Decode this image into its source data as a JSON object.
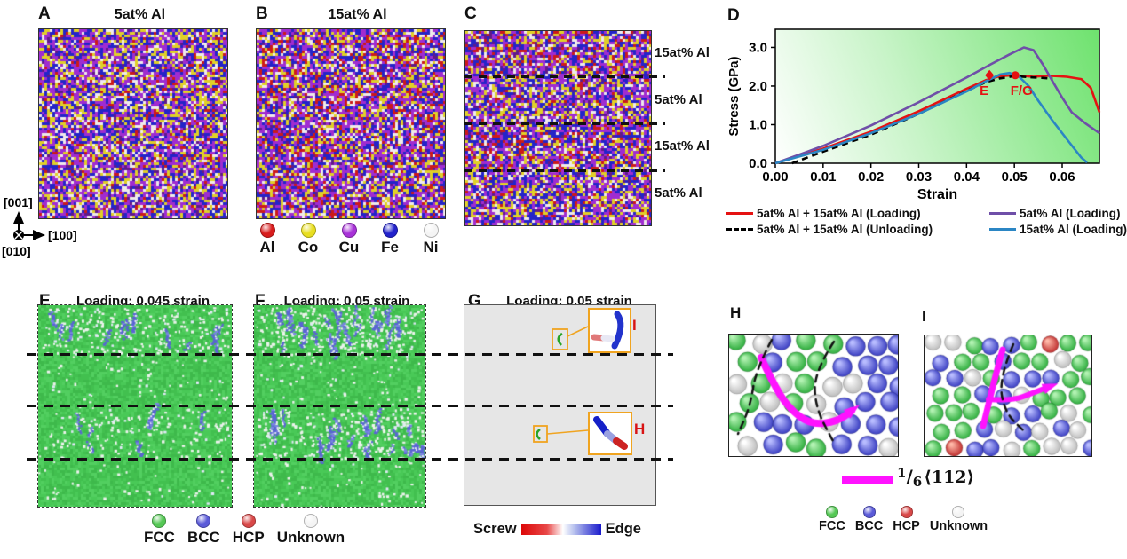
{
  "panel_a": {
    "label": "A",
    "title": "5at% Al"
  },
  "panel_b": {
    "label": "B",
    "title": "15at% Al"
  },
  "panel_c": {
    "label": "C",
    "layer_labels": [
      "15at% Al",
      "5at% Al",
      "15at% Al",
      "5at% Al"
    ]
  },
  "panel_d": {
    "label": "D"
  },
  "panel_e": {
    "label": "E",
    "title": "Loading: 0.045 strain"
  },
  "panel_f": {
    "label": "F",
    "title": "Loading: 0.05 strain"
  },
  "panel_g": {
    "label": "G",
    "title": "Loading: 0.05 strain",
    "inset_top_label": "I",
    "inset_bottom_label": "H"
  },
  "panel_h": {
    "label": "H"
  },
  "panel_i": {
    "label": "I"
  },
  "crystal_axes": {
    "up": "[001]",
    "right": "[100]",
    "out": "[010]"
  },
  "element_legend": [
    {
      "name": "Al",
      "color": "#d81c1c"
    },
    {
      "name": "Co",
      "color": "#e8de20"
    },
    {
      "name": "Cu",
      "color": "#a832d8"
    },
    {
      "name": "Fe",
      "color": "#2222cc"
    },
    {
      "name": "Ni",
      "color": "#f4f4f4"
    }
  ],
  "structure_legend": [
    {
      "name": "FCC",
      "color": "#55c855"
    },
    {
      "name": "BCC",
      "color": "#5a5ad8"
    },
    {
      "name": "HCP",
      "color": "#d84848"
    },
    {
      "name": "Unknown",
      "color": "#f4f4f4"
    }
  ],
  "dislocation_character_bar": {
    "left_label": "Screw",
    "right_label": "Edge"
  },
  "burgers_vector_legend": {
    "numerator": "1",
    "slash": "/",
    "denominator": "6",
    "vector": "⟨112⟩",
    "color": "#ff12ff"
  },
  "chart_data": {
    "type": "line",
    "xlabel": "Strain",
    "ylabel": "Stress (GPa)",
    "xlim": [
      0,
      0.0678
    ],
    "ylim": [
      0,
      3.47
    ],
    "xticks": [
      0,
      0.01,
      0.02,
      0.03,
      0.04,
      0.05,
      0.06
    ],
    "yticks": [
      0,
      1,
      2,
      3
    ],
    "grid": false,
    "legend_position": "below",
    "series": [
      {
        "name": "5at% Al + 15at% Al (Loading)",
        "color": "#e51212",
        "dashed": false,
        "points": [
          [
            0,
            0
          ],
          [
            0.01,
            0.38
          ],
          [
            0.02,
            0.82
          ],
          [
            0.03,
            1.35
          ],
          [
            0.04,
            1.93
          ],
          [
            0.044,
            2.15
          ],
          [
            0.047,
            2.26
          ],
          [
            0.05,
            2.28
          ],
          [
            0.054,
            2.24
          ],
          [
            0.057,
            2.27
          ],
          [
            0.061,
            2.24
          ],
          [
            0.064,
            2.18
          ],
          [
            0.066,
            1.95
          ],
          [
            0.0678,
            1.32
          ]
        ]
      },
      {
        "name": "5at% Al (Loading)",
        "color": "#6f4fa8",
        "dashed": false,
        "points": [
          [
            0,
            0
          ],
          [
            0.01,
            0.45
          ],
          [
            0.02,
            0.98
          ],
          [
            0.03,
            1.58
          ],
          [
            0.04,
            2.22
          ],
          [
            0.045,
            2.56
          ],
          [
            0.049,
            2.82
          ],
          [
            0.052,
            3.0
          ],
          [
            0.054,
            2.93
          ],
          [
            0.056,
            2.55
          ],
          [
            0.058,
            2.12
          ],
          [
            0.06,
            1.7
          ],
          [
            0.062,
            1.32
          ],
          [
            0.065,
            1.02
          ],
          [
            0.0678,
            0.78
          ]
        ]
      },
      {
        "name": "5at% Al + 15at% Al (Unloading)",
        "color": "#000000",
        "dashed": true,
        "points": [
          [
            0.0035,
            0
          ],
          [
            0.01,
            0.3
          ],
          [
            0.02,
            0.74
          ],
          [
            0.03,
            1.28
          ],
          [
            0.04,
            1.87
          ],
          [
            0.044,
            2.1
          ],
          [
            0.047,
            2.2
          ],
          [
            0.05,
            2.26
          ],
          [
            0.053,
            2.23
          ],
          [
            0.056,
            2.21
          ],
          [
            0.058,
            2.19
          ]
        ]
      },
      {
        "name": "15at% Al (Loading)",
        "color": "#2b86c4",
        "dashed": false,
        "points": [
          [
            0,
            0
          ],
          [
            0.01,
            0.35
          ],
          [
            0.02,
            0.78
          ],
          [
            0.03,
            1.28
          ],
          [
            0.04,
            1.86
          ],
          [
            0.044,
            2.12
          ],
          [
            0.047,
            2.3
          ],
          [
            0.049,
            2.34
          ],
          [
            0.051,
            2.24
          ],
          [
            0.053,
            2.0
          ],
          [
            0.055,
            1.62
          ],
          [
            0.058,
            1.1
          ],
          [
            0.061,
            0.62
          ],
          [
            0.064,
            0.15
          ],
          [
            0.0652,
            0.02
          ]
        ]
      }
    ],
    "markers": [
      {
        "label": "E",
        "x": 0.0448,
        "y": 2.28,
        "shape": "diamond",
        "color": "#e51212"
      },
      {
        "label": "F/G",
        "x": 0.0502,
        "y": 2.28,
        "shape": "circle",
        "color": "#e51212"
      }
    ],
    "legend": [
      {
        "label": "5at% Al + 15at% Al (Loading)",
        "color": "#e51212",
        "dashed": false
      },
      {
        "label": "5at% Al (Loading)",
        "color": "#6f4fa8",
        "dashed": false
      },
      {
        "label": "5at% Al + 15at% Al (Unloading)",
        "color": "#000000",
        "dashed": true
      },
      {
        "label": "15at% Al (Loading)",
        "color": "#2b86c4",
        "dashed": false
      }
    ],
    "plot_background": {
      "from": "#ffffff",
      "to": "#6ee26e",
      "direction": "bottomleft-to-topright"
    }
  }
}
